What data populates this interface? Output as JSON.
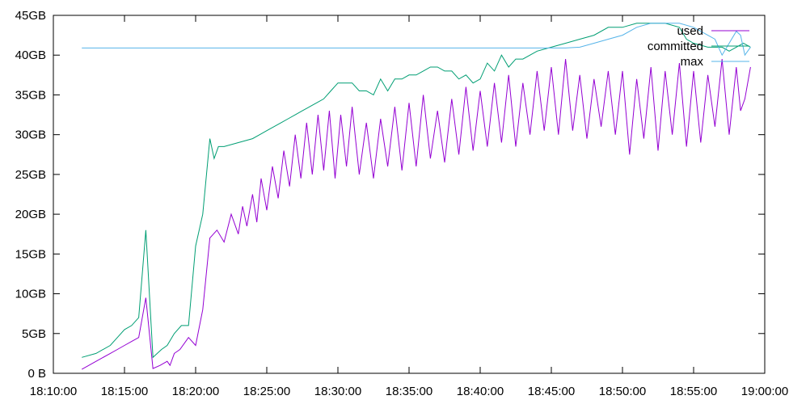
{
  "chart_data": {
    "type": "line",
    "title": "",
    "xlabel": "",
    "ylabel": "",
    "x_ticks": [
      "18:10:00",
      "18:15:00",
      "18:20:00",
      "18:25:00",
      "18:30:00",
      "18:35:00",
      "18:40:00",
      "18:45:00",
      "18:50:00",
      "18:55:00",
      "19:00:00"
    ],
    "y_ticks": [
      "0 B",
      "5GB",
      "10GB",
      "15GB",
      "20GB",
      "25GB",
      "30GB",
      "35GB",
      "40GB",
      "45GB"
    ],
    "xlim_minutes": [
      0,
      50
    ],
    "ylim_gb": [
      0,
      45
    ],
    "grid": false,
    "legend_position": "top-right",
    "series": [
      {
        "name": "used",
        "color": "#9400d3",
        "x": [
          2,
          3,
          4,
          4.5,
          5,
          5.5,
          6,
          6.5,
          7,
          7.5,
          8,
          8.2,
          8.5,
          8.9,
          9.5,
          10,
          10.5,
          11,
          11.5,
          12,
          12.5,
          13,
          13.3,
          13.6,
          14,
          14.3,
          14.6,
          15,
          15.4,
          15.8,
          16.2,
          16.6,
          17,
          17.4,
          17.8,
          18.2,
          18.6,
          19,
          19.4,
          19.8,
          20.2,
          20.6,
          21,
          21.5,
          22,
          22.5,
          23,
          23.5,
          24,
          24.5,
          25,
          25.5,
          26,
          26.5,
          27,
          27.5,
          28,
          28.5,
          29,
          29.5,
          30,
          30.5,
          31,
          31.5,
          32,
          32.5,
          33,
          33.5,
          34,
          34.5,
          35,
          35.5,
          36,
          36.5,
          37,
          37.5,
          38,
          38.5,
          39,
          39.5,
          40,
          40.5,
          41,
          41.5,
          42,
          42.5,
          43,
          43.5,
          44,
          44.5,
          45,
          45.5,
          46,
          46.5,
          47,
          47.5,
          48,
          48.3,
          48.6,
          49
        ],
        "y": [
          0.5,
          1.5,
          2.5,
          3.0,
          3.5,
          4.0,
          4.5,
          9.5,
          0.6,
          1.0,
          1.5,
          1.0,
          2.5,
          3.0,
          4.5,
          3.5,
          8.0,
          17.0,
          18.0,
          16.5,
          20.0,
          17.5,
          21.0,
          18.5,
          22.5,
          19.0,
          24.5,
          20.5,
          26.0,
          22.0,
          28.0,
          23.5,
          30.0,
          24.5,
          31.5,
          25.0,
          32.5,
          25.5,
          33.0,
          24.5,
          32.5,
          26.0,
          33.5,
          25.0,
          31.5,
          24.5,
          32.0,
          26.0,
          33.5,
          25.5,
          34.0,
          26.0,
          35.0,
          27.0,
          33.0,
          26.5,
          34.5,
          27.5,
          36.0,
          28.0,
          35.5,
          28.5,
          36.5,
          29.0,
          37.5,
          28.5,
          36.5,
          30.0,
          38.0,
          30.5,
          38.5,
          30.0,
          39.5,
          30.5,
          37.5,
          29.5,
          37.0,
          31.0,
          38.0,
          30.0,
          38.0,
          27.5,
          37.0,
          29.5,
          38.5,
          28.0,
          38.0,
          30.0,
          39.0,
          28.5,
          38.0,
          29.0,
          37.5,
          31.0,
          39.5,
          30.0,
          38.5,
          33.0,
          34.5,
          38.5
        ]
      },
      {
        "name": "committed",
        "color": "#009e73",
        "x": [
          2,
          3,
          4,
          4.5,
          5,
          5.5,
          6,
          6.5,
          7,
          7.3,
          7.6,
          8,
          8.5,
          9,
          9.5,
          10,
          10.5,
          11,
          11.3,
          11.6,
          12,
          13,
          14,
          14.5,
          15,
          15.5,
          16,
          16.5,
          17,
          17.5,
          18,
          18.5,
          19,
          19.5,
          20,
          20.5,
          21,
          21.5,
          22,
          22.5,
          23,
          23.5,
          24,
          24.5,
          25,
          25.5,
          26,
          26.5,
          27,
          27.5,
          28,
          28.5,
          29,
          29.5,
          30,
          30.5,
          31,
          31.5,
          32,
          32.5,
          33,
          34,
          35,
          36,
          37,
          38,
          39,
          40,
          41,
          42,
          43,
          44,
          44.5,
          45,
          46,
          47,
          47.5,
          48,
          48.5,
          49
        ],
        "y": [
          2.0,
          2.5,
          3.5,
          4.5,
          5.5,
          6.0,
          7.0,
          18.0,
          2.0,
          2.5,
          3.0,
          3.5,
          5.0,
          6.0,
          6.0,
          16.0,
          20.0,
          29.5,
          27.0,
          28.5,
          28.5,
          29.0,
          29.5,
          30.0,
          30.5,
          31.0,
          31.5,
          32.0,
          32.5,
          33.0,
          33.5,
          34.0,
          34.5,
          35.5,
          36.5,
          36.5,
          36.5,
          35.5,
          35.5,
          35.0,
          37.0,
          35.5,
          37.0,
          37.0,
          37.5,
          37.5,
          38.0,
          38.5,
          38.5,
          38.0,
          38.0,
          37.0,
          37.5,
          36.5,
          37.0,
          39.0,
          38.0,
          40.0,
          38.5,
          39.5,
          39.5,
          40.5,
          41.0,
          41.5,
          42.0,
          42.5,
          43.5,
          43.5,
          44.0,
          44.0,
          44.0,
          43.5,
          42.0,
          41.5,
          41.0,
          41.0,
          40.5,
          41.0,
          41.5,
          41.0
        ]
      },
      {
        "name": "max",
        "color": "#56b4e9",
        "x": [
          2,
          36,
          37,
          38,
          39,
          40,
          41,
          42,
          43,
          44,
          45,
          46,
          46.5,
          47,
          47.5,
          48,
          48.3,
          48.6,
          49
        ],
        "y": [
          40.9,
          40.9,
          41.0,
          41.5,
          42.0,
          42.5,
          43.5,
          44.0,
          44.0,
          44.0,
          43.5,
          42.5,
          42.0,
          40.0,
          41.5,
          43.0,
          42.5,
          40.0,
          41.0
        ]
      }
    ]
  }
}
